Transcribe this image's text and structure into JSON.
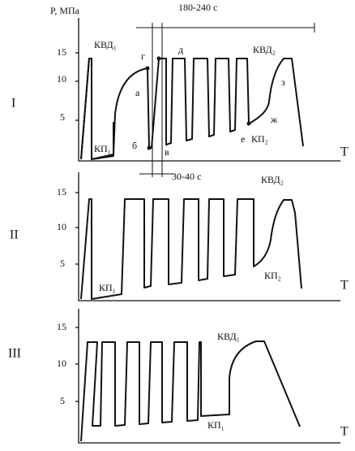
{
  "y_axis_label": "P, МПа",
  "interval_top": "180-240 с",
  "interval_mid": "30-40 с",
  "panels": [
    {
      "label": "I",
      "x_label": "T",
      "yticks": [
        "15",
        "10",
        "5"
      ],
      "annotations": [
        "КВД₁",
        "КВД₂",
        "КП₁",
        "КП₂",
        "а",
        "б",
        "в",
        "г",
        "д",
        "е",
        "ж",
        "з"
      ]
    },
    {
      "label": "II",
      "x_label": "T",
      "yticks": [
        "15",
        "10",
        "5"
      ],
      "annotations": [
        "КВД₂",
        "КП₁",
        "КП₂"
      ]
    },
    {
      "label": "III",
      "x_label": "T",
      "yticks": [
        "15",
        "10",
        "5"
      ],
      "annotations": [
        "КВД₁",
        "КП₁"
      ]
    }
  ]
}
